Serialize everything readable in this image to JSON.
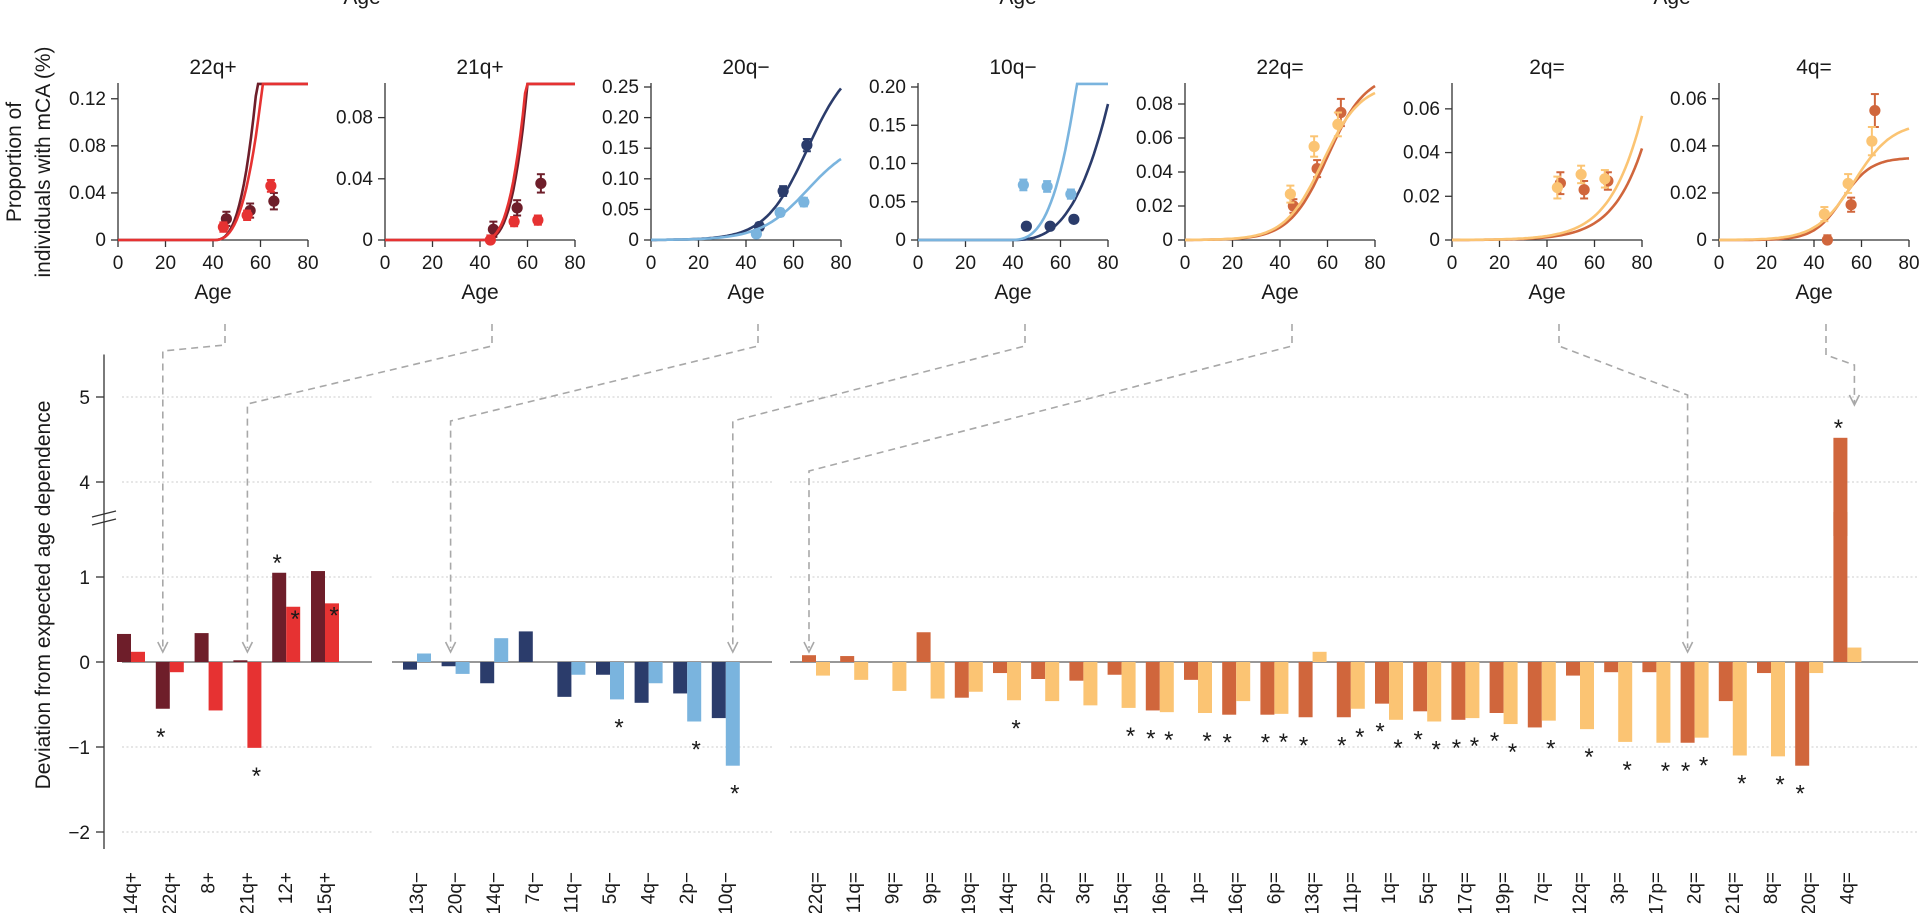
{
  "top_axis_fragment": [
    "Age",
    "Age",
    "Age"
  ],
  "top_ylabel": [
    "Proportion of",
    "individuals with mCA (%)"
  ],
  "bottom_ylabel": "Deviation from expected age dependence",
  "xlabel": "Age",
  "colors": {
    "plus_dark": "#6e1e2a",
    "plus_light": "#e63232",
    "minus_dark": "#2b3c6b",
    "minus_light": "#7ab4de",
    "eq_dark": "#d0663c",
    "eq_light": "#fbc473",
    "connector": "#a8a8a8"
  },
  "chart_data": [
    {
      "type": "line",
      "title": "22q+",
      "pal": "plus",
      "xlabel": "Age",
      "xlim": [
        0,
        80
      ],
      "xticks": [
        0,
        20,
        40,
        60,
        80
      ],
      "ylim": [
        0,
        0.13
      ],
      "yticks": [
        "0",
        "0.04",
        "0.08",
        "0.12"
      ],
      "ytick_vals": [
        0,
        0.04,
        0.08,
        0.12
      ],
      "series": [
        {
          "name": "dark",
          "curve": {
            "onset": 40,
            "k": 0.03,
            "L": null,
            "A": 2.8e-05,
            "p": 2.9
          },
          "points": [
            [
              45,
              0.018
            ],
            [
              55,
              0.025
            ],
            [
              65,
              0.033
            ]
          ],
          "err": [
            0.006,
            0.006,
            0.007
          ]
        },
        {
          "name": "light",
          "curve": {
            "onset": 40,
            "k": 0.03,
            "L": null,
            "A": 3.1e-05,
            "p": 2.75
          },
          "points": [
            [
              45,
              0.011
            ],
            [
              55,
              0.021
            ],
            [
              65,
              0.046
            ]
          ],
          "err": [
            0.004,
            0.004,
            0.005
          ]
        }
      ]
    },
    {
      "type": "line",
      "title": "21q+",
      "pal": "plus",
      "xlabel": "Age",
      "xlim": [
        0,
        80
      ],
      "xticks": [
        0,
        20,
        40,
        60,
        80
      ],
      "ylim": [
        0,
        0.1
      ],
      "yticks": [
        "0",
        "0.04",
        "0.08"
      ],
      "ytick_vals": [
        0,
        0.04,
        0.08
      ],
      "series": [
        {
          "name": "dark",
          "curve": {
            "onset": 40,
            "k": 0,
            "L": null,
            "A": 7e-06,
            "p": 3.2
          },
          "points": [
            [
              45,
              0.007
            ],
            [
              55,
              0.021
            ],
            [
              65,
              0.037
            ]
          ],
          "err": [
            0.005,
            0.005,
            0.006
          ]
        },
        {
          "name": "light",
          "curve": {
            "onset": 40,
            "k": 0,
            "L": null,
            "A": 1.4e-05,
            "p": 3.0
          },
          "points": [
            [
              45,
              0.0
            ],
            [
              55,
              0.012
            ],
            [
              65,
              0.013
            ]
          ],
          "err": [
            0.003,
            0.003,
            0.003
          ]
        }
      ]
    },
    {
      "type": "line",
      "title": "20q−",
      "pal": "minus",
      "xlabel": "Age",
      "xlim": [
        0,
        80
      ],
      "xticks": [
        0,
        20,
        40,
        60,
        80
      ],
      "ylim": [
        0,
        0.25
      ],
      "yticks": [
        "0",
        "0.05",
        "0.10",
        "0.15",
        "0.20",
        "0.25"
      ],
      "ytick_vals": [
        0,
        0.05,
        0.1,
        0.15,
        0.2,
        0.25
      ],
      "series": [
        {
          "name": "dark",
          "curve": {
            "logistic": true,
            "L": 0.3,
            "x0": 66,
            "s": 9
          },
          "points": [
            [
              45,
              0.022
            ],
            [
              55,
              0.08
            ],
            [
              65,
              0.155
            ]
          ],
          "err": [
            0.006,
            0.008,
            0.01
          ]
        },
        {
          "name": "light",
          "curve": {
            "logistic": true,
            "L": 0.165,
            "x0": 66,
            "s": 10
          },
          "points": [
            [
              45,
              0.01
            ],
            [
              55,
              0.045
            ],
            [
              65,
              0.062
            ]
          ],
          "err": [
            0.005,
            0.006,
            0.007
          ]
        }
      ]
    },
    {
      "type": "line",
      "title": "10q−",
      "pal": "minus",
      "xlabel": "Age",
      "xlim": [
        0,
        80
      ],
      "xticks": [
        0,
        20,
        40,
        60,
        80
      ],
      "ylim": [
        0,
        0.2
      ],
      "yticks": [
        "0",
        "0.05",
        "0.10",
        "0.15",
        "0.20"
      ],
      "ytick_vals": [
        0,
        0.05,
        0.1,
        0.15,
        0.2
      ],
      "series": [
        {
          "name": "dark",
          "curve": {
            "onset": 38,
            "k": 0,
            "L": null,
            "A": 2.4e-06,
            "p": 3.0
          },
          "points": [
            [
              45,
              0.018
            ],
            [
              55,
              0.018
            ],
            [
              65,
              0.027
            ]
          ],
          "err": [
            0.004,
            0.004,
            0.004
          ]
        },
        {
          "name": "light",
          "curve": {
            "onset": 38,
            "k": 0,
            "L": null,
            "A": 8.5e-06,
            "p": 3.0
          },
          "points": [
            [
              45,
              0.072
            ],
            [
              55,
              0.07
            ],
            [
              65,
              0.06
            ]
          ],
          "err": [
            0.007,
            0.007,
            0.006
          ]
        }
      ]
    },
    {
      "type": "line",
      "title": "22q=",
      "pal": "eq",
      "xlabel": "Age",
      "xlim": [
        0,
        80
      ],
      "xticks": [
        0,
        20,
        40,
        60,
        80
      ],
      "ylim": [
        0,
        0.09
      ],
      "yticks": [
        "0",
        "0.02",
        "0.04",
        "0.06",
        "0.08"
      ],
      "ytick_vals": [
        0,
        0.02,
        0.04,
        0.06,
        0.08
      ],
      "series": [
        {
          "name": "dark",
          "curve": {
            "logistic": true,
            "L": 0.098,
            "x0": 60,
            "s": 8
          },
          "points": [
            [
              45,
              0.02
            ],
            [
              55,
              0.042
            ],
            [
              65,
              0.075
            ]
          ],
          "err": [
            0.004,
            0.005,
            0.008
          ]
        },
        {
          "name": "light",
          "curve": {
            "logistic": true,
            "L": 0.092,
            "x0": 58,
            "s": 8
          },
          "points": [
            [
              45,
              0.027
            ],
            [
              55,
              0.055
            ],
            [
              65,
              0.068
            ]
          ],
          "err": [
            0.005,
            0.006,
            0.007
          ]
        }
      ]
    },
    {
      "type": "line",
      "title": "2q=",
      "pal": "eq",
      "xlabel": "Age",
      "xlim": [
        0,
        80
      ],
      "xticks": [
        0,
        20,
        40,
        60,
        80
      ],
      "ylim": [
        0,
        0.07
      ],
      "yticks": [
        "0",
        "0.02",
        "0.04",
        "0.06"
      ],
      "ytick_vals": [
        0,
        0.02,
        0.04,
        0.06
      ],
      "series": [
        {
          "name": "dark",
          "curve": {
            "logistic": true,
            "L": 0.3,
            "x0": 100,
            "s": 11
          },
          "points": [
            [
              45,
              0.026
            ],
            [
              55,
              0.023
            ],
            [
              65,
              0.027
            ]
          ],
          "err": [
            0.005,
            0.004,
            0.004
          ]
        },
        {
          "name": "light",
          "curve": {
            "logistic": true,
            "L": 0.3,
            "x0": 96,
            "s": 11
          },
          "points": [
            [
              45,
              0.024
            ],
            [
              55,
              0.03
            ],
            [
              65,
              0.028
            ]
          ],
          "err": [
            0.005,
            0.004,
            0.004
          ]
        }
      ]
    },
    {
      "type": "line",
      "title": "4q=",
      "pal": "eq",
      "xlabel": "Age",
      "xlim": [
        0,
        80
      ],
      "xticks": [
        0,
        20,
        40,
        60,
        80
      ],
      "ylim": [
        0,
        0.065
      ],
      "yticks": [
        "0",
        "0.02",
        "0.04",
        "0.06"
      ],
      "ytick_vals": [
        0,
        0.02,
        0.04,
        0.06
      ],
      "series": [
        {
          "name": "dark",
          "curve": {
            "logistic": true,
            "L": 0.035,
            "x0": 52,
            "s": 6
          },
          "points": [
            [
              45,
              0.0
            ],
            [
              55,
              0.015
            ],
            [
              65,
              0.055
            ]
          ],
          "err": [
            0.002,
            0.003,
            0.007
          ]
        },
        {
          "name": "light",
          "curve": {
            "logistic": true,
            "L": 0.05,
            "x0": 57,
            "s": 8
          },
          "points": [
            [
              45,
              0.011
            ],
            [
              55,
              0.024
            ],
            [
              65,
              0.042
            ]
          ],
          "err": [
            0.003,
            0.004,
            0.006
          ]
        }
      ]
    },
    {
      "type": "bar",
      "ylabel": "Deviation from expected age dependence",
      "ylim": [
        -2.2,
        5.5
      ],
      "yticks": [
        "−2",
        "−1",
        "0",
        "1",
        "4",
        "5"
      ],
      "ytick_vals": [
        -2,
        -1,
        0,
        1,
        4,
        5
      ],
      "axis_break": [
        1.6,
        3.6
      ],
      "groups": [
        {
          "name": "gains",
          "pal": "plus",
          "categories": [
            "14q+",
            "22q+",
            "8+",
            "21q+",
            "12+",
            "15q+"
          ],
          "series": [
            {
              "name": "dark",
              "values": [
                0.33,
                -0.55,
                0.34,
                0.02,
                1.05,
                1.07
              ],
              "sig": [
                false,
                true,
                false,
                false,
                true,
                false
              ]
            },
            {
              "name": "light",
              "values": [
                0.12,
                -0.12,
                -0.57,
                -1.01,
                0.65,
                0.69
              ],
              "sig": [
                false,
                false,
                false,
                true,
                true,
                true
              ]
            }
          ]
        },
        {
          "name": "losses",
          "pal": "minus",
          "categories": [
            "13q−",
            "20q−",
            "14q−",
            "7q−",
            "11q−",
            "5q−",
            "4q−",
            "2p−",
            "10q−"
          ],
          "series": [
            {
              "name": "dark",
              "values": [
                -0.09,
                -0.05,
                -0.25,
                0.36,
                -0.41,
                -0.15,
                -0.48,
                -0.37,
                -0.66
              ],
              "sig": [
                false,
                false,
                false,
                false,
                false,
                false,
                false,
                false,
                false
              ]
            },
            {
              "name": "light",
              "values": [
                0.1,
                -0.14,
                0.28,
                0.0,
                -0.15,
                -0.44,
                -0.25,
                -0.7,
                -1.22
              ],
              "sig": [
                false,
                false,
                false,
                false,
                false,
                true,
                false,
                true,
                true
              ]
            }
          ]
        },
        {
          "name": "cnloh",
          "pal": "eq",
          "categories": [
            "22q=",
            "11q=",
            "9q=",
            "9p=",
            "19q=",
            "14q=",
            "2p=",
            "3q=",
            "15q=",
            "16p=",
            "1p=",
            "16q=",
            "6p=",
            "13q=",
            "11p=",
            "1q=",
            "5q=",
            "17q=",
            "19p=",
            "7q=",
            "12q=",
            "3p=",
            "17p=",
            "2q=",
            "21q=",
            "8q=",
            "20q=",
            "4q="
          ],
          "series": [
            {
              "name": "dark",
              "values": [
                0.08,
                0.07,
                0.0,
                0.35,
                -0.42,
                -0.13,
                -0.2,
                -0.22,
                -0.15,
                -0.57,
                -0.21,
                -0.62,
                -0.62,
                -0.65,
                -0.65,
                -0.49,
                -0.58,
                -0.68,
                -0.6,
                -0.77,
                -0.16,
                -0.12,
                -0.12,
                -0.95,
                -0.46,
                -0.13,
                -1.22,
                4.52
              ],
              "sig": [
                false,
                false,
                false,
                false,
                false,
                false,
                false,
                false,
                false,
                true,
                false,
                true,
                true,
                true,
                true,
                true,
                true,
                true,
                true,
                false,
                false,
                false,
                false,
                true,
                false,
                false,
                true,
                true
              ]
            },
            {
              "name": "light",
              "values": [
                -0.16,
                -0.21,
                -0.34,
                -0.43,
                -0.35,
                -0.45,
                -0.46,
                -0.51,
                -0.54,
                -0.59,
                -0.6,
                -0.46,
                -0.61,
                0.12,
                -0.55,
                -0.68,
                -0.7,
                -0.66,
                -0.73,
                -0.69,
                -0.79,
                -0.94,
                -0.95,
                -0.89,
                -1.1,
                -1.11,
                -0.13,
                0.17
              ],
              "sig": [
                false,
                false,
                false,
                false,
                false,
                true,
                false,
                false,
                true,
                true,
                true,
                false,
                true,
                false,
                true,
                true,
                true,
                true,
                true,
                true,
                true,
                true,
                true,
                true,
                true,
                true,
                false,
                false
              ]
            }
          ]
        }
      ]
    }
  ]
}
